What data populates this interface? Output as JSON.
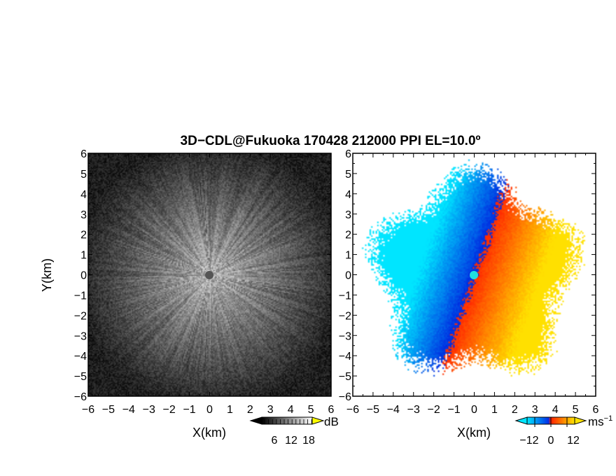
{
  "title": "3D−CDL@Fukuoka 170428 212000 PPI EL=10.0º",
  "colors": {
    "reflectivity_low": "#0a0a0a",
    "reflectivity_high": "#ffffff",
    "velocity_neg_far": "#00e5ff",
    "velocity_neg_near": "#0028e0",
    "velocity_pos_near": "#ff2a00",
    "velocity_pos_far": "#ffe000",
    "center_marker_left": "#555555",
    "center_marker_right": "#22e0e0"
  },
  "chart_data": [
    {
      "type": "heatmap",
      "name": "reflectivity-ppi",
      "xlabel": "X(km)",
      "ylabel": "Y(km)",
      "xlim": [
        -6,
        6
      ],
      "ylim": [
        -6,
        6
      ],
      "xticks": [
        "−6",
        "−5",
        "−4",
        "−3",
        "−2",
        "−1",
        "0",
        "1",
        "2",
        "3",
        "4",
        "5",
        "6"
      ],
      "yticks": [
        "−6",
        "−5",
        "−4",
        "−3",
        "−2",
        "−1",
        "0",
        "1",
        "2",
        "3",
        "4",
        "5",
        "6"
      ],
      "colorbar": {
        "unit": "dB",
        "ticks": [
          "6",
          "12",
          "18"
        ],
        "range": [
          0,
          24
        ]
      }
    },
    {
      "type": "heatmap",
      "name": "doppler-velocity-ppi",
      "xlabel": "X(km)",
      "ylabel": "",
      "xlim": [
        -6,
        6
      ],
      "ylim": [
        -6,
        6
      ],
      "xticks": [
        "−6",
        "−5",
        "−4",
        "−3",
        "−2",
        "−1",
        "0",
        "1",
        "2",
        "3",
        "4",
        "5",
        "6"
      ],
      "yticks": [
        "−6",
        "−5",
        "−4",
        "−3",
        "−2",
        "−1",
        "0",
        "1",
        "2",
        "3",
        "4",
        "5",
        "6"
      ],
      "colorbar": {
        "unit": "ms",
        "unit_exp": "−1",
        "ticks": [
          "−12",
          "0",
          "12"
        ],
        "range": [
          -18,
          18
        ]
      }
    }
  ]
}
